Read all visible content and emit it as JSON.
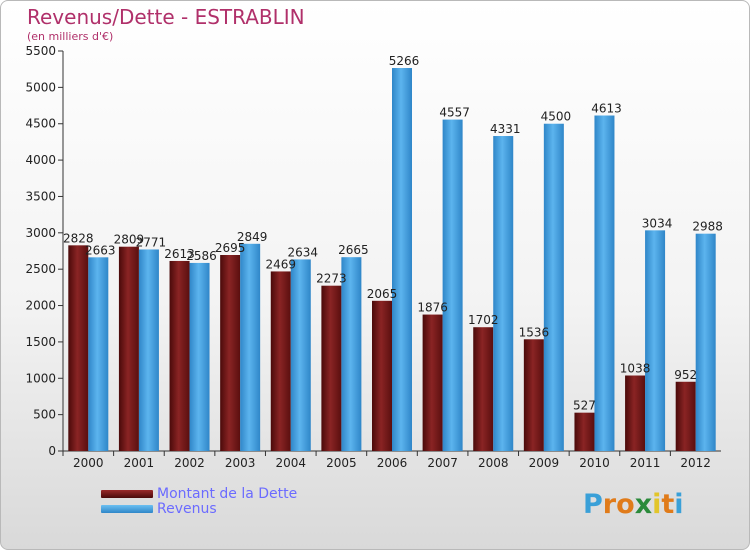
{
  "header": {
    "title": "Revenus/Dette - ESTRABLIN",
    "subtitle": "(en milliers d'€)"
  },
  "legend": {
    "items": [
      {
        "label": "Montant de la Dette",
        "color": "#7a1414"
      },
      {
        "label": "Revenus",
        "color": "#46a3e6"
      }
    ]
  },
  "logo": {
    "letters": [
      "P",
      "r",
      "o",
      "x",
      "i",
      "t",
      "i"
    ],
    "colors": [
      "#3aa0d8",
      "#e07b1a",
      "#e07b1a",
      "#2a8a3a",
      "#e2c52a",
      "#e07b1a",
      "#3aa0d8"
    ]
  },
  "chart_data": {
    "type": "bar",
    "categories": [
      "2000",
      "2001",
      "2002",
      "2003",
      "2004",
      "2005",
      "2006",
      "2007",
      "2008",
      "2009",
      "2010",
      "2011",
      "2012"
    ],
    "series": [
      {
        "name": "Montant de la Dette",
        "color": "#7a1414",
        "values": [
          2828,
          2809,
          2613,
          2695,
          2469,
          2273,
          2065,
          1876,
          1702,
          1536,
          527,
          1038,
          952
        ]
      },
      {
        "name": "Revenus",
        "color": "#46a3e6",
        "values": [
          2663,
          2771,
          2586,
          2849,
          2634,
          2665,
          5266,
          4557,
          4331,
          4500,
          4613,
          3034,
          2988
        ]
      }
    ],
    "yticks": [
      0,
      500,
      1000,
      1500,
      2000,
      2500,
      3000,
      3500,
      4000,
      4500,
      5000,
      5500
    ],
    "ylim": [
      0,
      5500
    ],
    "title": "Revenus/Dette - ESTRABLIN",
    "ylabel": "(en milliers d'€)",
    "grid": false,
    "legend_position": "bottom-left"
  }
}
